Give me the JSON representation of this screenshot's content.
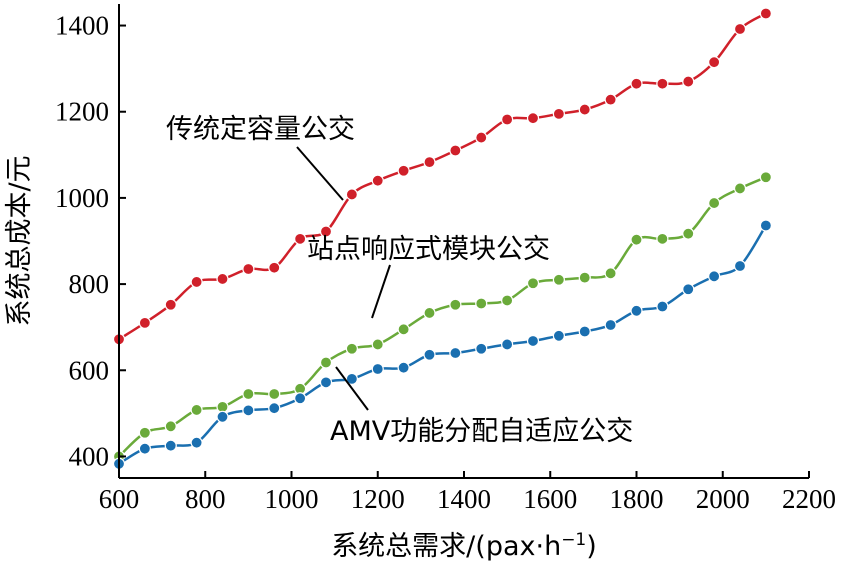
{
  "chart_data": {
    "type": "line",
    "title": "",
    "xlabel": "系统总需求/(pax·h",
    "xlabel_sup": "−1",
    "xlabel_close": ")",
    "ylabel": "系统总成本/元",
    "xlim": [
      600,
      2200
    ],
    "ylim": [
      350,
      1450
    ],
    "x_ticks": [
      600,
      800,
      1000,
      1200,
      1400,
      1600,
      1800,
      2000,
      2200
    ],
    "y_ticks": [
      400,
      600,
      800,
      1000,
      1200,
      1400
    ],
    "x_tick_labels": [
      "600",
      "800",
      "1000",
      "1200",
      "1400",
      "1600",
      "1800",
      "2000",
      "2200"
    ],
    "y_tick_labels": [
      "400",
      "600",
      "800",
      "1000",
      "1200",
      "1400"
    ],
    "grid": false,
    "legend": "none",
    "x": [
      600,
      660,
      720,
      780,
      840,
      900,
      960,
      1020,
      1080,
      1140,
      1200,
      1260,
      1320,
      1380,
      1440,
      1500,
      1560,
      1620,
      1680,
      1740,
      1800,
      1860,
      1920,
      1980,
      2040,
      2100
    ],
    "series": [
      {
        "name": "传统定容量公交",
        "color": "#d0202a",
        "values": [
          672,
          710,
          752,
          805,
          812,
          835,
          838,
          905,
          922,
          1008,
          1040,
          1063,
          1083,
          1110,
          1140,
          1182,
          1185,
          1195,
          1205,
          1228,
          1265,
          1265,
          1270,
          1315,
          1392,
          1428
        ]
      },
      {
        "name": "站点响应式模块公交",
        "color": "#6aaa3a",
        "values": [
          400,
          455,
          470,
          508,
          515,
          545,
          545,
          557,
          618,
          650,
          660,
          695,
          733,
          752,
          755,
          762,
          802,
          810,
          815,
          825,
          903,
          905,
          917,
          988,
          1022,
          1048
        ]
      },
      {
        "name": "AMV功能分配自适应公交",
        "color": "#1a6fb0",
        "values": [
          383,
          418,
          425,
          432,
          492,
          507,
          512,
          535,
          572,
          580,
          603,
          606,
          636,
          640,
          650,
          660,
          668,
          680,
          690,
          705,
          738,
          748,
          788,
          818,
          842,
          936
        ]
      }
    ],
    "annotations": [
      {
        "text": "传统定容量公交",
        "series": 0
      },
      {
        "text": "站点响应式模块公交",
        "series": 1
      },
      {
        "text": "AMV功能分配自适应公交",
        "series": 2
      }
    ]
  }
}
